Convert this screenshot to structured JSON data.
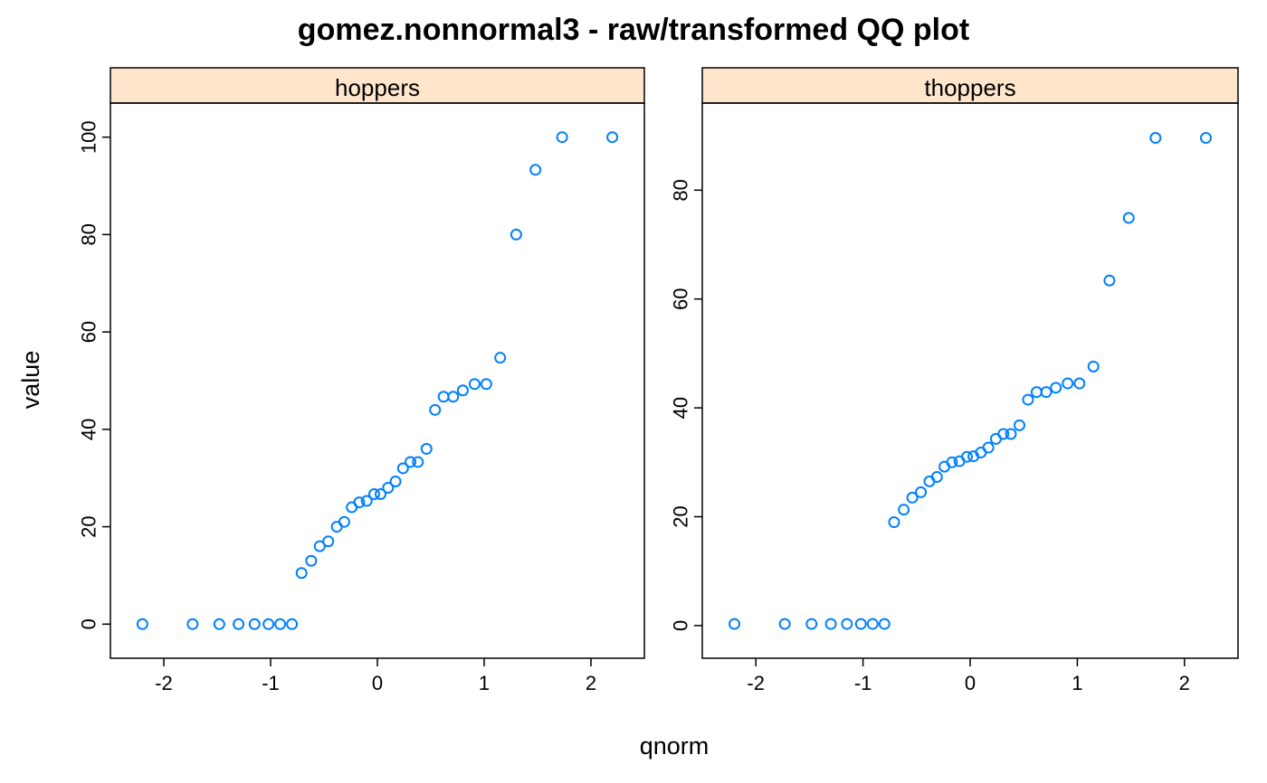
{
  "title": "gomez.nonnormal3 - raw/transformed QQ plot",
  "chart_data": [
    {
      "type": "scatter",
      "panel": "hoppers",
      "xlabel": "qnorm",
      "ylabel": "value",
      "xlim": [
        -2.5,
        2.5
      ],
      "ylim": [
        -7,
        107
      ],
      "x_ticks": [
        -2,
        -1,
        0,
        1,
        2
      ],
      "y_ticks": [
        0,
        20,
        40,
        60,
        80,
        100
      ],
      "x_tick_labels": [
        "-2",
        "-1",
        "0",
        "1",
        "2"
      ],
      "y_tick_labels": [
        "0",
        "20",
        "40",
        "60",
        "80",
        "100"
      ],
      "marker_color": "#0080ff",
      "strip_color": "#ffe5cc",
      "points": [
        [
          -2.2,
          0
        ],
        [
          -1.73,
          0
        ],
        [
          -1.48,
          0
        ],
        [
          -1.3,
          0
        ],
        [
          -1.15,
          0
        ],
        [
          -1.02,
          0
        ],
        [
          -0.91,
          0
        ],
        [
          -0.8,
          0
        ],
        [
          -0.71,
          10.5
        ],
        [
          -0.62,
          13
        ],
        [
          -0.54,
          16
        ],
        [
          -0.46,
          17
        ],
        [
          -0.38,
          20
        ],
        [
          -0.31,
          21
        ],
        [
          -0.24,
          24
        ],
        [
          -0.17,
          25
        ],
        [
          -0.1,
          25.3
        ],
        [
          -0.03,
          26.7
        ],
        [
          0.03,
          26.7
        ],
        [
          0.1,
          28
        ],
        [
          0.17,
          29.3
        ],
        [
          0.24,
          32
        ],
        [
          0.31,
          33.3
        ],
        [
          0.38,
          33.3
        ],
        [
          0.46,
          36
        ],
        [
          0.54,
          44
        ],
        [
          0.62,
          46.7
        ],
        [
          0.71,
          46.7
        ],
        [
          0.8,
          48
        ],
        [
          0.91,
          49.3
        ],
        [
          1.02,
          49.3
        ],
        [
          1.15,
          54.7
        ],
        [
          1.3,
          80
        ],
        [
          1.48,
          93.3
        ],
        [
          1.73,
          100
        ],
        [
          2.2,
          100
        ]
      ]
    },
    {
      "type": "scatter",
      "panel": "thoppers",
      "xlabel": "qnorm",
      "ylabel": "value",
      "xlim": [
        -2.5,
        2.5
      ],
      "ylim": [
        -6,
        96
      ],
      "x_ticks": [
        -2,
        -1,
        0,
        1,
        2
      ],
      "y_ticks": [
        0,
        20,
        40,
        60,
        80
      ],
      "x_tick_labels": [
        "-2",
        "-1",
        "0",
        "1",
        "2"
      ],
      "y_tick_labels": [
        "0",
        "20",
        "40",
        "60",
        "80"
      ],
      "marker_color": "#0080ff",
      "strip_color": "#ffe5cc",
      "points": [
        [
          -2.2,
          0.3
        ],
        [
          -1.73,
          0.3
        ],
        [
          -1.48,
          0.3
        ],
        [
          -1.3,
          0.3
        ],
        [
          -1.15,
          0.3
        ],
        [
          -1.02,
          0.3
        ],
        [
          -0.91,
          0.3
        ],
        [
          -0.8,
          0.3
        ],
        [
          -0.71,
          19
        ],
        [
          -0.62,
          21.3
        ],
        [
          -0.54,
          23.5
        ],
        [
          -0.46,
          24.5
        ],
        [
          -0.38,
          26.5
        ],
        [
          -0.31,
          27.3
        ],
        [
          -0.24,
          29.2
        ],
        [
          -0.17,
          30
        ],
        [
          -0.1,
          30.2
        ],
        [
          -0.03,
          31
        ],
        [
          0.03,
          31.1
        ],
        [
          0.1,
          31.8
        ],
        [
          0.17,
          32.7
        ],
        [
          0.24,
          34.3
        ],
        [
          0.31,
          35.2
        ],
        [
          0.38,
          35.2
        ],
        [
          0.46,
          36.8
        ],
        [
          0.54,
          41.5
        ],
        [
          0.62,
          42.9
        ],
        [
          0.71,
          42.9
        ],
        [
          0.8,
          43.7
        ],
        [
          0.91,
          44.5
        ],
        [
          1.02,
          44.5
        ],
        [
          1.15,
          47.6
        ],
        [
          1.3,
          63.4
        ],
        [
          1.48,
          74.9
        ],
        [
          1.73,
          89.6
        ],
        [
          2.2,
          89.6
        ]
      ]
    }
  ]
}
